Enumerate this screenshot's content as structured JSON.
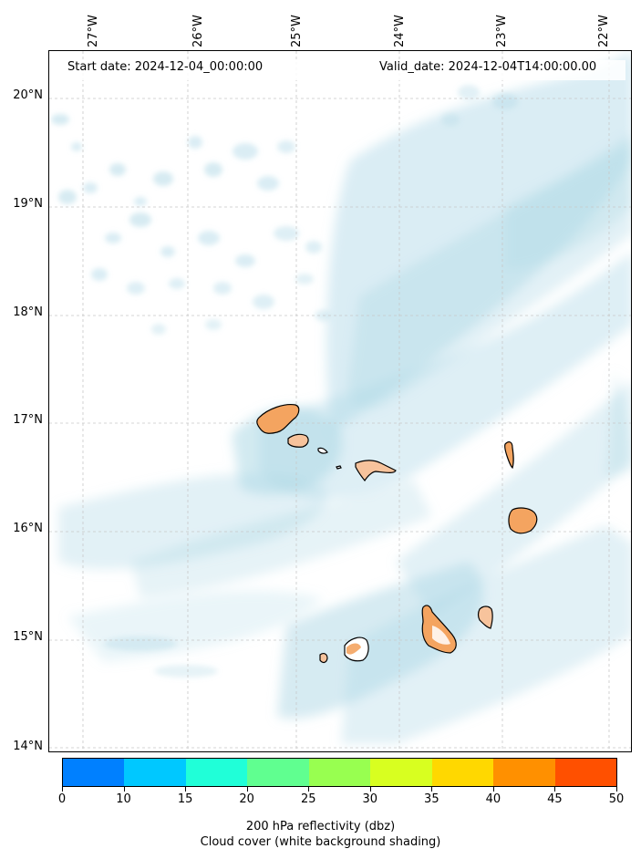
{
  "header": {
    "start_date": "Start date: 2024-12-04_00:00:00",
    "valid_date": "Valid_date: 2024-12-04T14:00:00.00"
  },
  "longitudes": [
    "27°W",
    "26°W",
    "25°W",
    "24°W",
    "23°W",
    "22°W"
  ],
  "latitudes": [
    "20°N",
    "19°N",
    "18°N",
    "17°N",
    "16°N",
    "15°N",
    "14°N"
  ],
  "colorbar": {
    "ticks": [
      "0",
      "10",
      "15",
      "20",
      "25",
      "30",
      "35",
      "40",
      "45",
      "50"
    ],
    "colors": [
      "#0080ff",
      "#00c8ff",
      "#20ffd8",
      "#60ff90",
      "#98ff50",
      "#d8ff20",
      "#ffd800",
      "#ff9000",
      "#ff5000"
    ],
    "label_line1": "200 hPa reflectivity (dbz)",
    "label_line2": "Cloud cover (white background shading)"
  },
  "colors": {
    "cloud": "#add8e6",
    "land": "#f4a460",
    "coast": "#000000",
    "grid": "#c8c8c8"
  }
}
